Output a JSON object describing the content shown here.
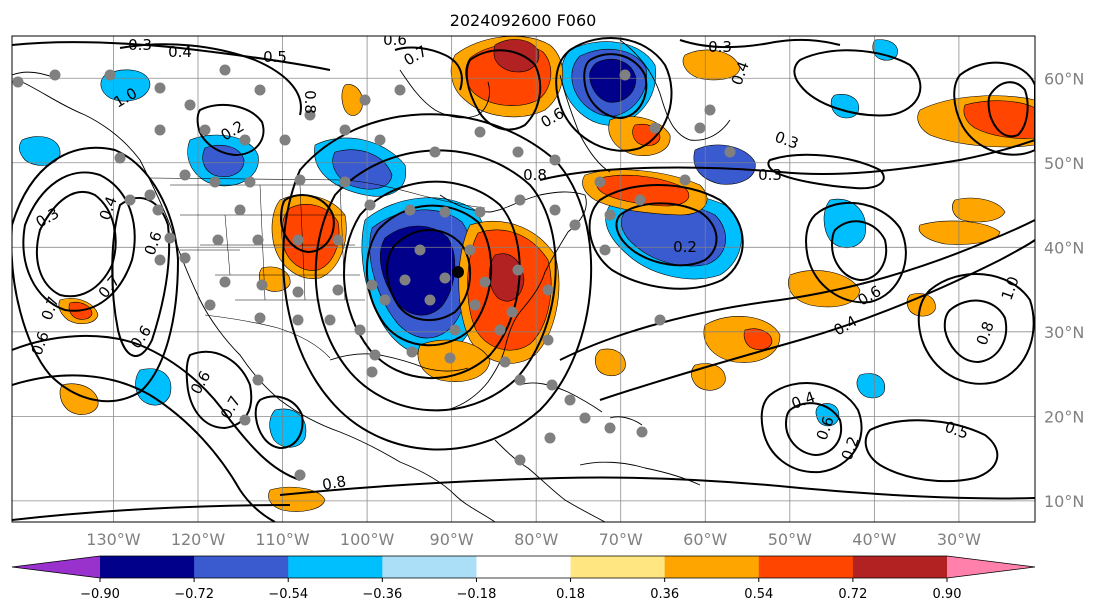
{
  "title": "2024092600 F060",
  "colors": {
    "neg_extreme": "#9932cc",
    "neg_strong": "#00008b",
    "neg_mid": "#3a5bd0",
    "neg_light": "#00bfff",
    "neg_faint": "#aadff7",
    "pos_faint": "#ffe680",
    "pos_light": "#ffa500",
    "pos_mid": "#ff4500",
    "pos_strong": "#b22222",
    "pos_extreme": "#ff80aa",
    "stations": "#808080",
    "contours": "#000000",
    "grid": "#808080"
  },
  "map": {
    "lon_range": [
      -142,
      -21
    ],
    "lat_range": [
      7.5,
      65
    ],
    "lon_ticks": [
      "130°W",
      "120°W",
      "110°W",
      "100°W",
      "90°W",
      "80°W",
      "70°W",
      "60°W",
      "50°W",
      "40°W",
      "30°W"
    ],
    "lat_ticks": [
      "60°N",
      "50°N",
      "40°N",
      "30°N",
      "20°N",
      "10°N"
    ],
    "contour_labels": [
      "0.3",
      "0.4",
      "0.5",
      "0.6",
      "0.7",
      "0.8",
      "1.0",
      "0.2",
      "0.3",
      "0.4",
      "0.6",
      "0.7",
      "0.6",
      "0.8",
      "0.6",
      "0.7",
      "0.8",
      "0.6",
      "0.3",
      "0.4",
      "0.3",
      "0.2",
      "0.3",
      "0.4",
      "0.6",
      "0.2",
      "0.5",
      "0.4",
      "0.6",
      "1.0",
      "0.8",
      "0.7",
      "0.6"
    ]
  },
  "colorbar": {
    "ticks": [
      "−0.90",
      "−0.72",
      "−0.54",
      "−0.36",
      "−0.18",
      "0.18",
      "0.36",
      "0.54",
      "0.72",
      "0.90"
    ]
  }
}
